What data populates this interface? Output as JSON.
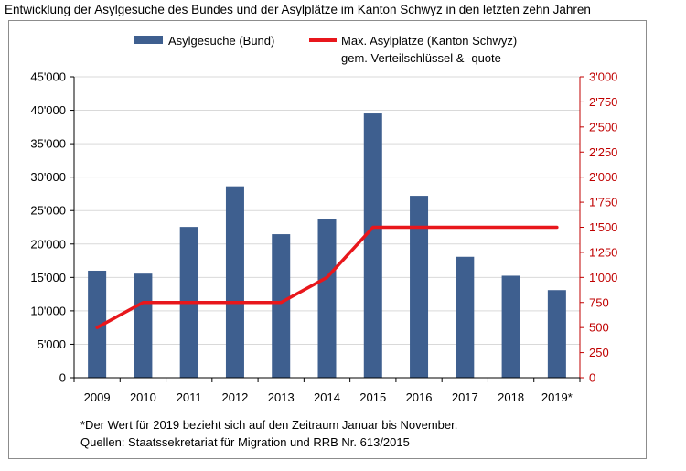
{
  "title": "Entwicklung der Asylgesuche des Bundes und der Asylplätze im Kanton Schwyz in den letzten zehn Jahren",
  "footnotes": {
    "line1": "*Der Wert für 2019 bezieht sich auf den Zeitraum Januar bis November.",
    "line2": "Quellen: Staatssekretariat für Migration und RRB Nr. 613/2015"
  },
  "colors": {
    "bar": "#3e5f8f",
    "line": "#e8171c",
    "right_axis": "#c00000"
  },
  "chart_data": {
    "type": "bar",
    "categories": [
      "2009",
      "2010",
      "2011",
      "2012",
      "2013",
      "2014",
      "2015",
      "2016",
      "2017",
      "2018",
      "2019*"
    ],
    "series": [
      {
        "name": "Asylgesuche (Bund)",
        "type": "bar",
        "axis": "left",
        "values": [
          16005,
          15567,
          22551,
          28631,
          21465,
          23765,
          39523,
          27207,
          18088,
          15255,
          13100
        ]
      },
      {
        "name_lines": [
          "Max. Asylplätze (Kanton Schwyz)",
          "gem. Verteilschlüssel & -quote"
        ],
        "type": "line",
        "axis": "right",
        "values": [
          500,
          750,
          750,
          750,
          750,
          1000,
          1500,
          1500,
          1500,
          1500,
          1500
        ]
      }
    ],
    "y_left": {
      "min": 0,
      "max": 45000,
      "step": 5000,
      "tick_labels": [
        "0",
        "5'000",
        "10'000",
        "15'000",
        "20'000",
        "25'000",
        "30'000",
        "35'000",
        "40'000",
        "45'000"
      ]
    },
    "y_right": {
      "min": 0,
      "max": 3000,
      "step": 250,
      "tick_labels": [
        "0",
        "250",
        "500",
        "750",
        "1'000",
        "1'250",
        "1'500",
        "1'750",
        "2'000",
        "2'250",
        "2'500",
        "2'750",
        "3'000"
      ]
    },
    "grid": true,
    "legend_position": "top"
  }
}
